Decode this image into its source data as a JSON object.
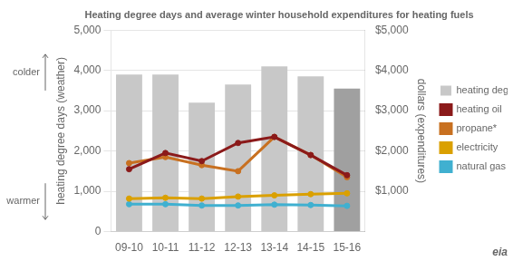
{
  "chart_data": {
    "type": "bar",
    "title": "Heating degree days and average winter household expenditures for heating fuels",
    "ylabel": "heating degree days (weather)",
    "y2label": "dollars (expenditures)",
    "categories": [
      "09-10",
      "10-11",
      "11-12",
      "12-13",
      "13-14",
      "14-15",
      "15-16"
    ],
    "series": [
      {
        "name": "heating degree days",
        "type": "bar",
        "colors": [
          "#c8c8c8",
          "#c8c8c8",
          "#c8c8c8",
          "#c8c8c8",
          "#c8c8c8",
          "#c8c8c8",
          "#a0a0a0"
        ],
        "values": [
          3900,
          3900,
          3200,
          3650,
          4100,
          3850,
          3550
        ]
      },
      {
        "name": "heating oil",
        "type": "line",
        "color": "#8b1a1a",
        "axis": "y2",
        "values": [
          1550,
          1950,
          1750,
          2200,
          2350,
          1900,
          1400
        ]
      },
      {
        "name": "propane*",
        "type": "line",
        "color": "#c87020",
        "axis": "y2",
        "values": [
          1700,
          1850,
          1650,
          1500,
          2350,
          1900,
          1350
        ]
      },
      {
        "name": "electricity",
        "type": "line",
        "color": "#daa000",
        "axis": "y2",
        "values": [
          820,
          840,
          820,
          870,
          900,
          930,
          950
        ]
      },
      {
        "name": "natural gas",
        "type": "line",
        "color": "#40b0d0",
        "axis": "y2",
        "values": [
          680,
          680,
          650,
          650,
          670,
          660,
          640
        ]
      }
    ],
    "ylim": [
      0,
      5000
    ],
    "yticks": [
      0,
      {
        "value": 1000,
        "label": "1,000"
      },
      {
        "value": 2000,
        "label": "2,000"
      },
      {
        "value": 3000,
        "label": "3,000"
      },
      {
        "value": 4000,
        "label": "4,000"
      },
      {
        "value": 5000,
        "label": "5,000"
      }
    ],
    "y2lim": [
      0,
      5000
    ],
    "y2ticks": [
      {
        "value": 1000,
        "label": "$1,000"
      },
      {
        "value": 2000,
        "label": "$2,000"
      },
      {
        "value": 3000,
        "label": "$3,000"
      },
      {
        "value": 4000,
        "label": "$4,000"
      },
      {
        "value": 5000,
        "label": "$5,000"
      }
    ],
    "grid": true,
    "legend": "right",
    "annotations": [
      "colder",
      "warmer",
      "eia"
    ]
  }
}
